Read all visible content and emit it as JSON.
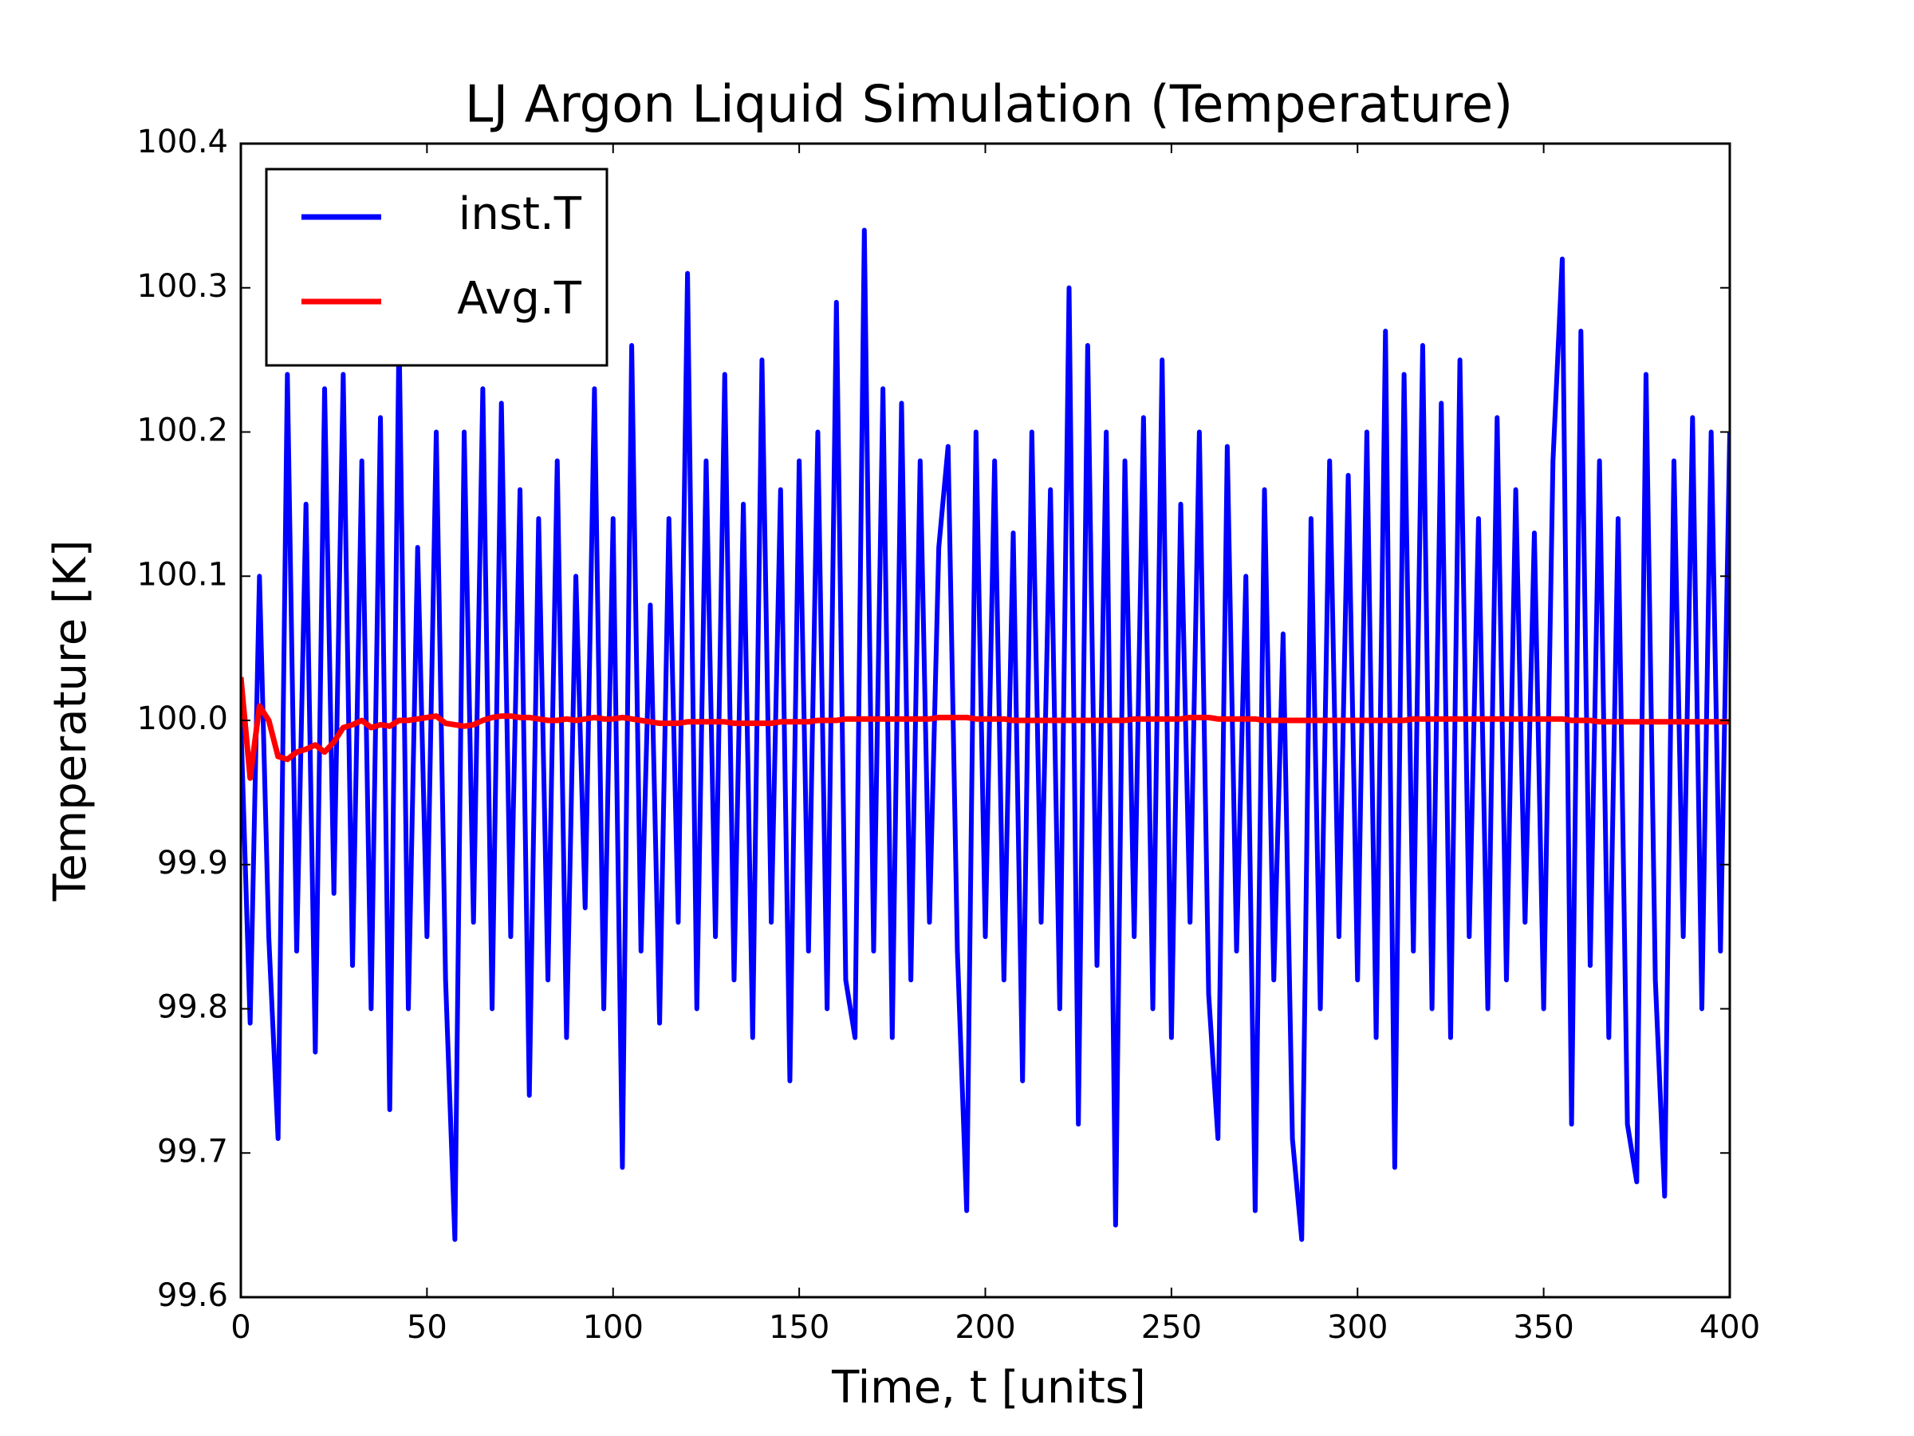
{
  "chart_data": {
    "type": "line",
    "title": "LJ Argon Liquid Simulation (Temperature)",
    "xlabel": "Time, t [units]",
    "ylabel": "Temperature [K]",
    "x": [
      0,
      2.5,
      5,
      7.5,
      10,
      12.5,
      15,
      17.5,
      20,
      22.5,
      25,
      27.5,
      30,
      32.5,
      35,
      37.5,
      40,
      42.5,
      45,
      47.5,
      50,
      52.5,
      55,
      57.5,
      60,
      62.5,
      65,
      67.5,
      70,
      72.5,
      75,
      77.5,
      80,
      82.5,
      85,
      87.5,
      90,
      92.5,
      95,
      97.5,
      100,
      102.5,
      105,
      107.5,
      110,
      112.5,
      115,
      117.5,
      120,
      122.5,
      125,
      127.5,
      130,
      132.5,
      135,
      137.5,
      140,
      142.5,
      145,
      147.5,
      150,
      152.5,
      155,
      157.5,
      160,
      162.5,
      165,
      167.5,
      170,
      172.5,
      175,
      177.5,
      180,
      182.5,
      185,
      187.5,
      190,
      192.5,
      195,
      197.5,
      200,
      202.5,
      205,
      207.5,
      210,
      212.5,
      215,
      217.5,
      220,
      222.5,
      225,
      227.5,
      230,
      232.5,
      235,
      237.5,
      240,
      242.5,
      245,
      247.5,
      250,
      252.5,
      255,
      257.5,
      260,
      262.5,
      265,
      267.5,
      270,
      272.5,
      275,
      277.5,
      280,
      282.5,
      285,
      287.5,
      290,
      292.5,
      295,
      297.5,
      300,
      302.5,
      305,
      307.5,
      310,
      312.5,
      315,
      317.5,
      320,
      322.5,
      325,
      327.5,
      330,
      332.5,
      335,
      337.5,
      340,
      342.5,
      345,
      347.5,
      350,
      352.5,
      355,
      357.5,
      360,
      362.5,
      365,
      367.5,
      370,
      372.5,
      375,
      377.5,
      380,
      382.5,
      385,
      387.5,
      390,
      392.5,
      395,
      397.5,
      400
    ],
    "series": [
      {
        "name": "inst.T",
        "color": "#0000ff",
        "values": [
          100.0,
          99.79,
          100.1,
          99.85,
          99.71,
          100.24,
          99.84,
          100.15,
          99.77,
          100.23,
          99.88,
          100.24,
          99.83,
          100.18,
          99.8,
          100.21,
          99.73,
          100.27,
          99.8,
          100.12,
          99.85,
          100.2,
          99.82,
          99.64,
          100.2,
          99.86,
          100.23,
          99.8,
          100.22,
          99.85,
          100.16,
          99.74,
          100.14,
          99.82,
          100.18,
          99.78,
          100.1,
          99.87,
          100.23,
          99.8,
          100.14,
          99.69,
          100.26,
          99.84,
          100.08,
          99.79,
          100.14,
          99.86,
          100.31,
          99.8,
          100.18,
          99.85,
          100.24,
          99.82,
          100.15,
          99.78,
          100.25,
          99.86,
          100.16,
          99.75,
          100.18,
          99.84,
          100.2,
          99.8,
          100.29,
          99.82,
          99.78,
          100.34,
          99.84,
          100.23,
          99.78,
          100.22,
          99.82,
          100.18,
          99.86,
          100.12,
          100.19,
          99.84,
          99.66,
          100.2,
          99.85,
          100.18,
          99.82,
          100.13,
          99.75,
          100.2,
          99.86,
          100.16,
          99.8,
          100.3,
          99.72,
          100.26,
          99.83,
          100.2,
          99.65,
          100.18,
          99.85,
          100.21,
          99.8,
          100.25,
          99.78,
          100.15,
          99.86,
          100.2,
          99.81,
          99.71,
          100.19,
          99.84,
          100.1,
          99.66,
          100.16,
          99.82,
          100.06,
          99.71,
          99.64,
          100.14,
          99.8,
          100.18,
          99.85,
          100.17,
          99.82,
          100.2,
          99.78,
          100.27,
          99.69,
          100.24,
          99.84,
          100.26,
          99.8,
          100.22,
          99.78,
          100.25,
          99.85,
          100.14,
          99.8,
          100.21,
          99.82,
          100.16,
          99.86,
          100.13,
          99.8,
          100.18,
          100.32,
          99.72,
          100.27,
          99.83,
          100.18,
          99.78,
          100.14,
          99.72,
          99.68,
          100.24,
          99.82,
          99.67,
          100.18,
          99.85,
          100.21,
          99.8,
          100.2,
          99.84,
          100.2
        ]
      },
      {
        "name": "Avg.T",
        "color": "#ff0000",
        "values": [
          100.03,
          99.96,
          100.01,
          100.0,
          99.975,
          99.973,
          99.978,
          99.98,
          99.983,
          99.978,
          99.985,
          99.995,
          99.997,
          100.0,
          99.995,
          99.997,
          99.996,
          100.0,
          100.0,
          100.001,
          100.002,
          100.003,
          99.998,
          99.997,
          99.996,
          99.997,
          100.0,
          100.002,
          100.003,
          100.003,
          100.002,
          100.002,
          100.001,
          100.0,
          100.0,
          100.001,
          100.0,
          100.001,
          100.002,
          100.001,
          100.001,
          100.002,
          100.001,
          100.0,
          99.999,
          99.998,
          99.998,
          99.998,
          99.999,
          99.999,
          99.999,
          99.999,
          99.999,
          99.998,
          99.998,
          99.998,
          99.998,
          99.998,
          99.999,
          99.999,
          99.999,
          99.999,
          100.0,
          100.0,
          100.0,
          100.001,
          100.001,
          100.001,
          100.001,
          100.001,
          100.001,
          100.001,
          100.001,
          100.001,
          100.001,
          100.002,
          100.002,
          100.002,
          100.002,
          100.001,
          100.001,
          100.001,
          100.001,
          100.0,
          100.0,
          100.0,
          100.0,
          100.0,
          100.0,
          100.0,
          100.0,
          100.0,
          100.0,
          100.0,
          100.0,
          100.0,
          100.001,
          100.001,
          100.001,
          100.001,
          100.001,
          100.001,
          100.002,
          100.002,
          100.002,
          100.001,
          100.001,
          100.001,
          100.001,
          100.001,
          100.0,
          100.0,
          100.0,
          100.0,
          100.0,
          100.0,
          100.0,
          100.0,
          100.0,
          100.0,
          100.0,
          100.0,
          100.0,
          100.0,
          100.0,
          100.0,
          100.001,
          100.001,
          100.001,
          100.001,
          100.001,
          100.001,
          100.001,
          100.001,
          100.001,
          100.001,
          100.001,
          100.001,
          100.001,
          100.001,
          100.001,
          100.001,
          100.001,
          100.0,
          100.0,
          100.0,
          99.999,
          99.999,
          99.999,
          99.999,
          99.999,
          99.999,
          99.999,
          99.999,
          99.999,
          99.999,
          99.999,
          99.999,
          99.999,
          99.999,
          99.999
        ]
      }
    ],
    "xlim": [
      0,
      400
    ],
    "xticks": [
      0,
      50,
      100,
      150,
      200,
      250,
      300,
      350,
      400
    ],
    "ylim": [
      99.6,
      100.4
    ],
    "yticks": [
      99.6,
      99.7,
      99.8,
      99.9,
      {
        "value": 100,
        "label": "100.0"
      },
      100.1,
      100.2,
      100.3,
      100.4
    ],
    "grid": false,
    "legend": "upper left"
  }
}
